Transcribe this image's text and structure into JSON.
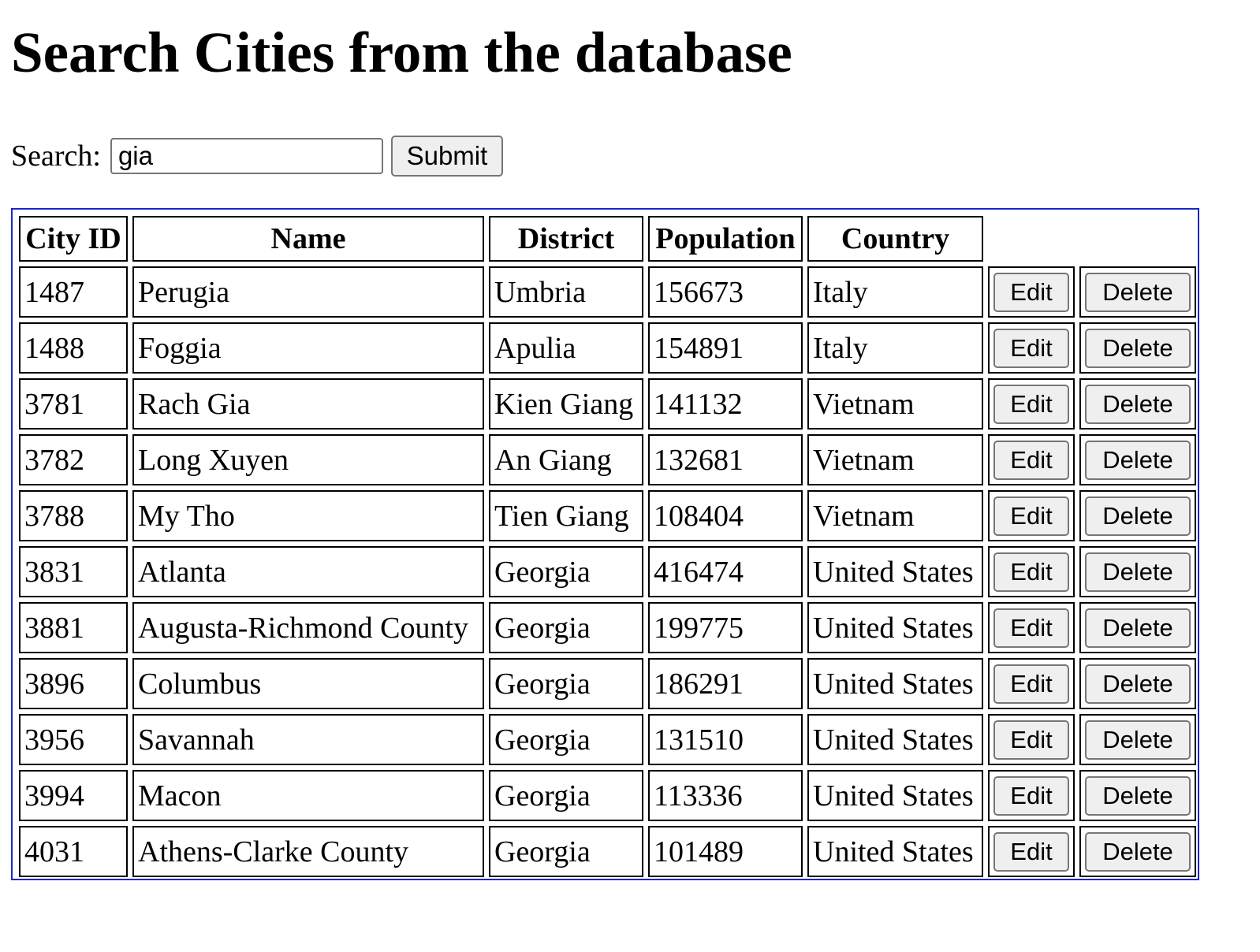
{
  "page": {
    "title": "Search Cities from the database"
  },
  "search": {
    "label": "Search:",
    "value": "gia",
    "submit_label": "Submit"
  },
  "table": {
    "headers": [
      "City ID",
      "Name",
      "District",
      "Population",
      "Country"
    ],
    "edit_label": "Edit",
    "delete_label": "Delete",
    "rows": [
      {
        "id": "1487",
        "name": "Perugia",
        "district": "Umbria",
        "population": "156673",
        "country": "Italy"
      },
      {
        "id": "1488",
        "name": "Foggia",
        "district": "Apulia",
        "population": "154891",
        "country": "Italy"
      },
      {
        "id": "3781",
        "name": "Rach Gia",
        "district": "Kien Giang",
        "population": "141132",
        "country": "Vietnam"
      },
      {
        "id": "3782",
        "name": "Long Xuyen",
        "district": "An Giang",
        "population": "132681",
        "country": "Vietnam"
      },
      {
        "id": "3788",
        "name": "My Tho",
        "district": "Tien Giang",
        "population": "108404",
        "country": "Vietnam"
      },
      {
        "id": "3831",
        "name": "Atlanta",
        "district": "Georgia",
        "population": "416474",
        "country": "United States"
      },
      {
        "id": "3881",
        "name": "Augusta-Richmond County",
        "district": "Georgia",
        "population": "199775",
        "country": "United States"
      },
      {
        "id": "3896",
        "name": "Columbus",
        "district": "Georgia",
        "population": "186291",
        "country": "United States"
      },
      {
        "id": "3956",
        "name": "Savannah",
        "district": "Georgia",
        "population": "131510",
        "country": "United States"
      },
      {
        "id": "3994",
        "name": "Macon",
        "district": "Georgia",
        "population": "113336",
        "country": "United States"
      },
      {
        "id": "4031",
        "name": "Athens-Clarke County",
        "district": "Georgia",
        "population": "101489",
        "country": "United States"
      }
    ]
  },
  "colors": {
    "table_border": "#1a27c7",
    "button_bg": "#efefef",
    "button_border": "#767676"
  }
}
